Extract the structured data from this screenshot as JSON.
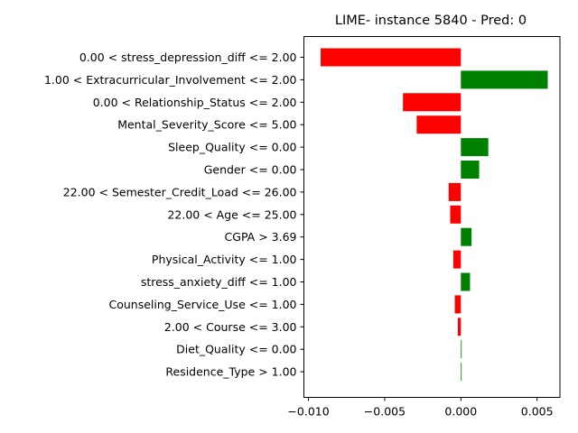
{
  "chart_data": {
    "type": "bar",
    "orientation": "horizontal",
    "title": "LIME- instance 5840 - Pred: 0",
    "xlabel": "",
    "ylabel": "",
    "xlim": [
      -0.0103,
      0.0065
    ],
    "xticks": [
      -0.01,
      -0.005,
      0.0,
      0.005
    ],
    "xtick_labels": [
      "−0.010",
      "−0.005",
      "0.000",
      "0.005"
    ],
    "grid": false,
    "legend": "none",
    "colors": {
      "positive": "#008000",
      "negative": "#ff0000"
    },
    "categories": [
      "0.00 < stress_depression_diff <= 2.00",
      "1.00 < Extracurricular_Involvement <= 2.00",
      "0.00 < Relationship_Status <= 2.00",
      "Mental_Severity_Score <= 5.00",
      "Sleep_Quality <= 0.00",
      "Gender <= 0.00",
      "22.00 < Semester_Credit_Load <= 26.00",
      "22.00 < Age <= 25.00",
      "CGPA > 3.69",
      "Physical_Activity <= 1.00",
      "stress_anxiety_diff <= 1.00",
      "Counseling_Service_Use <= 1.00",
      "2.00 < Course <= 3.00",
      "Diet_Quality <= 0.00",
      "Residence_Type > 1.00"
    ],
    "values": [
      -0.0092,
      0.0057,
      -0.0038,
      -0.0029,
      0.0018,
      0.0012,
      -0.0008,
      -0.0007,
      0.0007,
      -0.0005,
      0.0006,
      -0.0004,
      -0.0002,
      5e-05,
      5e-05
    ]
  }
}
